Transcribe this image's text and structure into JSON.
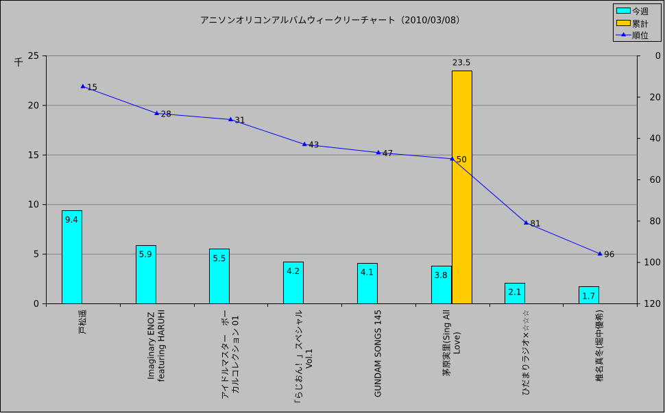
{
  "chart_data": {
    "type": "bar+line",
    "title": "アニソンオリコンアルバムウィークリーチャート（2010/03/08）",
    "y_left_unit": "千",
    "y_left_lim": [
      0,
      25
    ],
    "y_left_ticks": [
      "0",
      "5",
      "10",
      "15",
      "20",
      "25"
    ],
    "y_right_lim": [
      0,
      120
    ],
    "y_right_inverted": true,
    "y_right_ticks": [
      "0",
      "20",
      "40",
      "60",
      "80",
      "100",
      "120"
    ],
    "grid": true,
    "legend_position": "top-right",
    "categories": [
      [
        "戸松遥"
      ],
      [
        "Imaginary ENOZ",
        "featuring HARUHI"
      ],
      [
        "アイドルマスター　ボー",
        "カルコレクション 01"
      ],
      [
        "「らじおん！」スペシャル",
        "Vol.1"
      ],
      [
        "GUNDAM SONGS 145"
      ],
      [
        "茅原実里(Sing All",
        "Love)"
      ],
      [
        "ひだまりラジオ×☆☆☆"
      ],
      [
        "椎名真冬(堀中優希)"
      ]
    ],
    "series": [
      {
        "name": "今週",
        "kind": "bar",
        "color": "#00ffff",
        "values": [
          9.4,
          5.9,
          5.5,
          4.2,
          4.1,
          3.8,
          2.1,
          1.7
        ],
        "labels": [
          "9.4",
          "5.9",
          "5.5",
          "4.2",
          "4.1",
          "3.8",
          "2.1",
          "1.7"
        ]
      },
      {
        "name": "累計",
        "kind": "bar",
        "color": "#ffcc00",
        "values": [
          null,
          null,
          null,
          null,
          null,
          23.5,
          null,
          null
        ],
        "labels": [
          "",
          "",
          "",
          "",
          "",
          "23.5",
          "",
          ""
        ]
      },
      {
        "name": "順位",
        "kind": "line",
        "axis": "right",
        "color": "#0000ff",
        "marker": "triangle",
        "values": [
          15,
          28,
          31,
          43,
          47,
          50,
          81,
          96
        ],
        "labels": [
          "15",
          "28",
          "31",
          "43",
          "47",
          "50",
          "81",
          "96"
        ]
      }
    ]
  }
}
